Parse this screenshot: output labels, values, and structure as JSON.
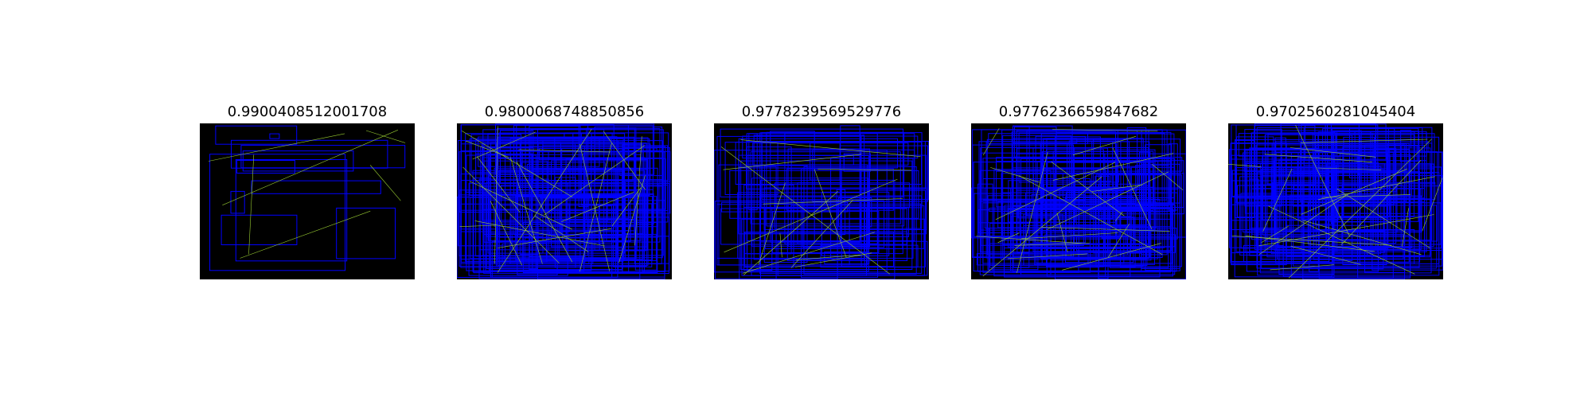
{
  "colors": {
    "background": "#ffffff",
    "panel": "#000000",
    "box": "#0000ff",
    "link": "#9acd32"
  },
  "panels": [
    {
      "title": "0.9900408512001708",
      "density": "sparse"
    },
    {
      "title": "0.9800068748850856",
      "density": "dense"
    },
    {
      "title": "0.9778239569529776",
      "density": "medium"
    },
    {
      "title": "0.9776236659847682",
      "density": "dense"
    },
    {
      "title": "0.9702560281045404",
      "density": "dense"
    }
  ]
}
